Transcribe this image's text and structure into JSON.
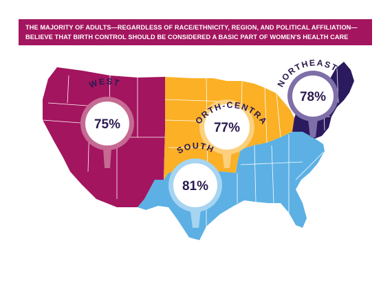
{
  "headline": {
    "line1": "THE MAJORITY OF ADULTS—REGARDLESS OF RACE/ETHNICITY, REGION, AND POLITICAL AFFILIATION—",
    "line2": "BELIEVE THAT BIRTH CONTROL SHOULD BE CONSIDERED A BASIC PART OF WOMEN'S HEALTH CARE"
  },
  "regions": [
    {
      "id": "west",
      "label": "WEST",
      "value": "75%",
      "color": "#a3155f"
    },
    {
      "id": "north-central",
      "label": "NORTH-CENTRAL",
      "value": "77%",
      "color": "#fbb026"
    },
    {
      "id": "south",
      "label": "SOUTH",
      "value": "81%",
      "color": "#5cb0e4"
    },
    {
      "id": "northeast",
      "label": "NORTHEAST",
      "value": "78%",
      "color": "#2b1a5e"
    }
  ]
}
